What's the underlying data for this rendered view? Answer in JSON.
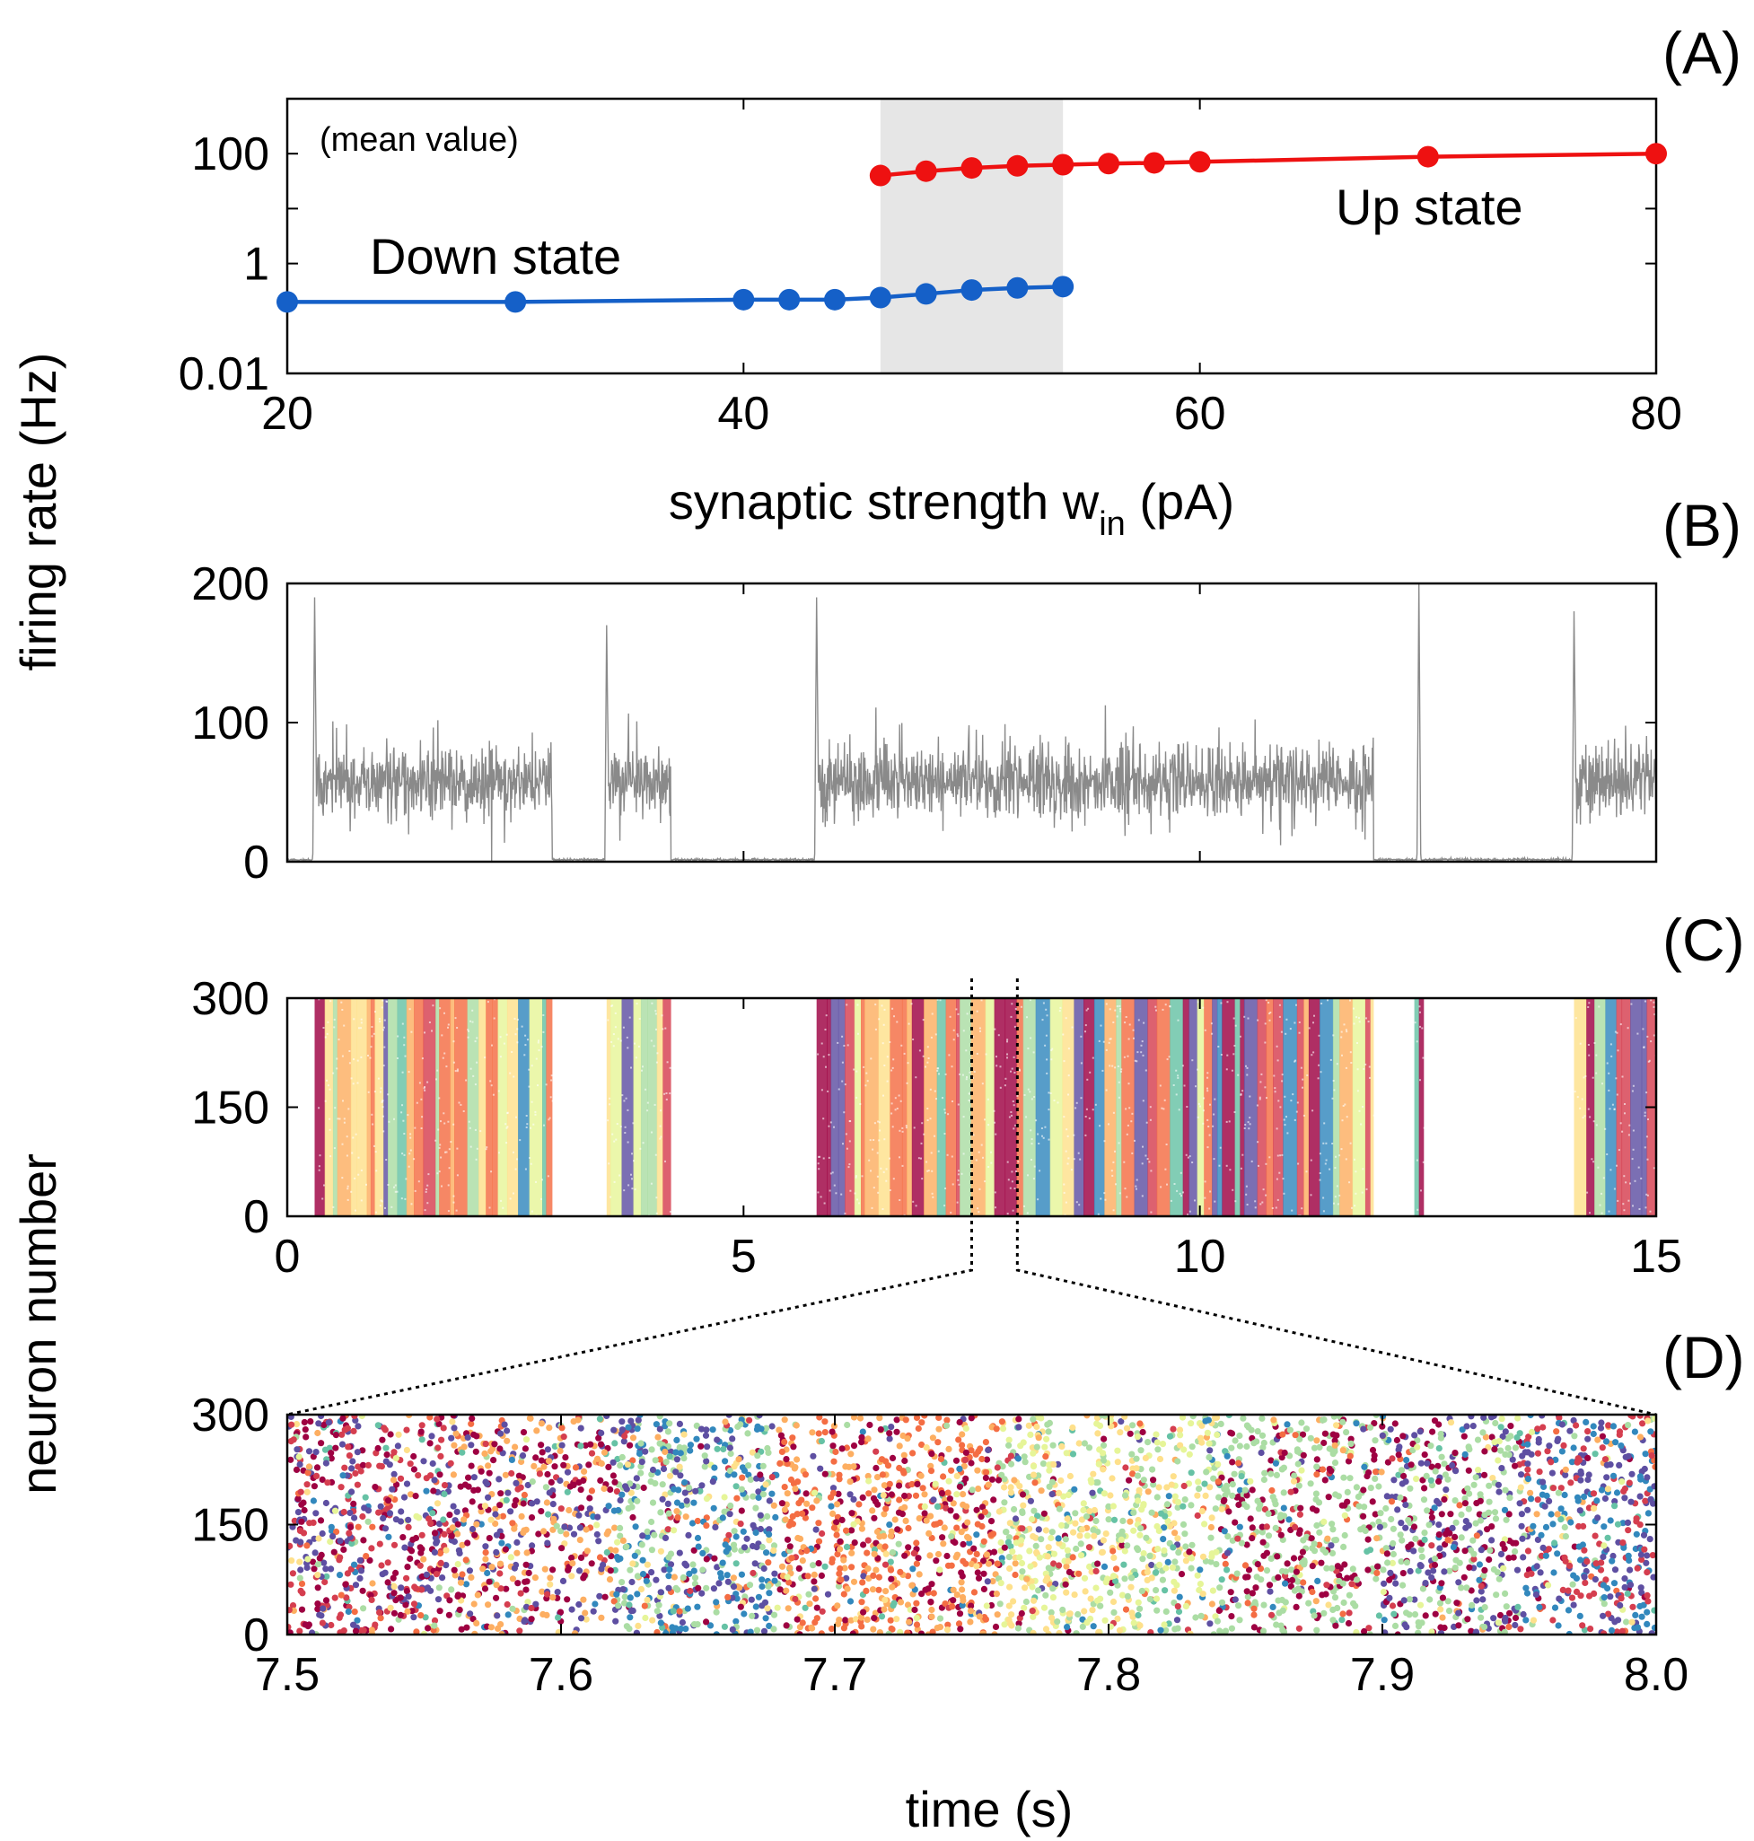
{
  "colors": {
    "down": "#1560c8",
    "up": "#ee1111",
    "bistable_band": "#e6e6e6",
    "rate_trace": "#8a8a8a",
    "raster_palette": [
      "#9e0142",
      "#d53e4f",
      "#f46d43",
      "#fdae61",
      "#fee08b",
      "#e6f598",
      "#abdda4",
      "#66c2a5",
      "#3288bd",
      "#5e4fa2"
    ]
  },
  "shared": {
    "ylabel_top": "firing rate (Hz)",
    "ylabel_bottom": "neuron number",
    "xlabel_time": "time (s)"
  },
  "chart_data": [
    {
      "panel": "(A)",
      "type": "line",
      "annotation": "(mean value)",
      "xlabel_main": "synaptic strength w",
      "xlabel_sub": "in",
      "xlabel_unit": " (pA)",
      "xlim": [
        20,
        80
      ],
      "ylim": [
        0.01,
        1000
      ],
      "yscale": "log",
      "xticks": [
        20,
        40,
        60,
        80
      ],
      "yticks": [
        0.01,
        1,
        100
      ],
      "ytick_labels": [
        "0.01",
        "1",
        "100"
      ],
      "shaded_x_range": [
        46,
        54
      ],
      "series": [
        {
          "name": "Down state",
          "x": [
            20,
            30,
            40,
            42,
            44,
            46,
            48,
            50,
            52,
            54
          ],
          "y": [
            0.2,
            0.2,
            0.22,
            0.22,
            0.22,
            0.24,
            0.28,
            0.33,
            0.36,
            0.38
          ]
        },
        {
          "name": "Up state",
          "x": [
            46,
            48,
            50,
            52,
            54,
            56,
            58,
            60,
            70,
            80
          ],
          "y": [
            40,
            48,
            55,
            60,
            63,
            66,
            68,
            71,
            88,
            100
          ]
        }
      ]
    },
    {
      "panel": "(B)",
      "type": "line",
      "xlim": [
        0,
        15
      ],
      "ylim": [
        0,
        200
      ],
      "yticks": [
        0,
        100,
        200
      ],
      "up_intervals": [
        [
          0.3,
          2.9
        ],
        [
          3.5,
          4.2
        ],
        [
          5.8,
          11.9
        ],
        [
          14.1,
          15.0
        ]
      ],
      "transient_peaks": [
        [
          0.3,
          190
        ],
        [
          3.5,
          170
        ],
        [
          5.8,
          190
        ],
        [
          12.4,
          200
        ],
        [
          14.1,
          180
        ]
      ],
      "up_mean_rate": 57,
      "down_rate": 1
    },
    {
      "panel": "(C)",
      "type": "scatter",
      "xlim": [
        0,
        15
      ],
      "ylim": [
        0,
        300
      ],
      "xticks": [
        0,
        5,
        10,
        15
      ],
      "yticks": [
        0,
        150,
        300
      ],
      "active_intervals": [
        [
          0.3,
          2.9
        ],
        [
          3.5,
          4.2
        ],
        [
          5.8,
          11.9
        ],
        [
          12.35,
          12.45
        ],
        [
          14.1,
          15.0
        ]
      ],
      "zoom_window": [
        7.5,
        8.0
      ]
    },
    {
      "panel": "(D)",
      "type": "scatter",
      "xlim": [
        7.5,
        8.0
      ],
      "ylim": [
        0,
        300
      ],
      "xticks": [
        7.5,
        7.6,
        7.7,
        7.8,
        7.9,
        8.0
      ],
      "xtick_labels": [
        "7.5",
        "7.6",
        "7.7",
        "7.8",
        "7.9",
        "8.0"
      ],
      "yticks": [
        0,
        150,
        300
      ]
    }
  ]
}
